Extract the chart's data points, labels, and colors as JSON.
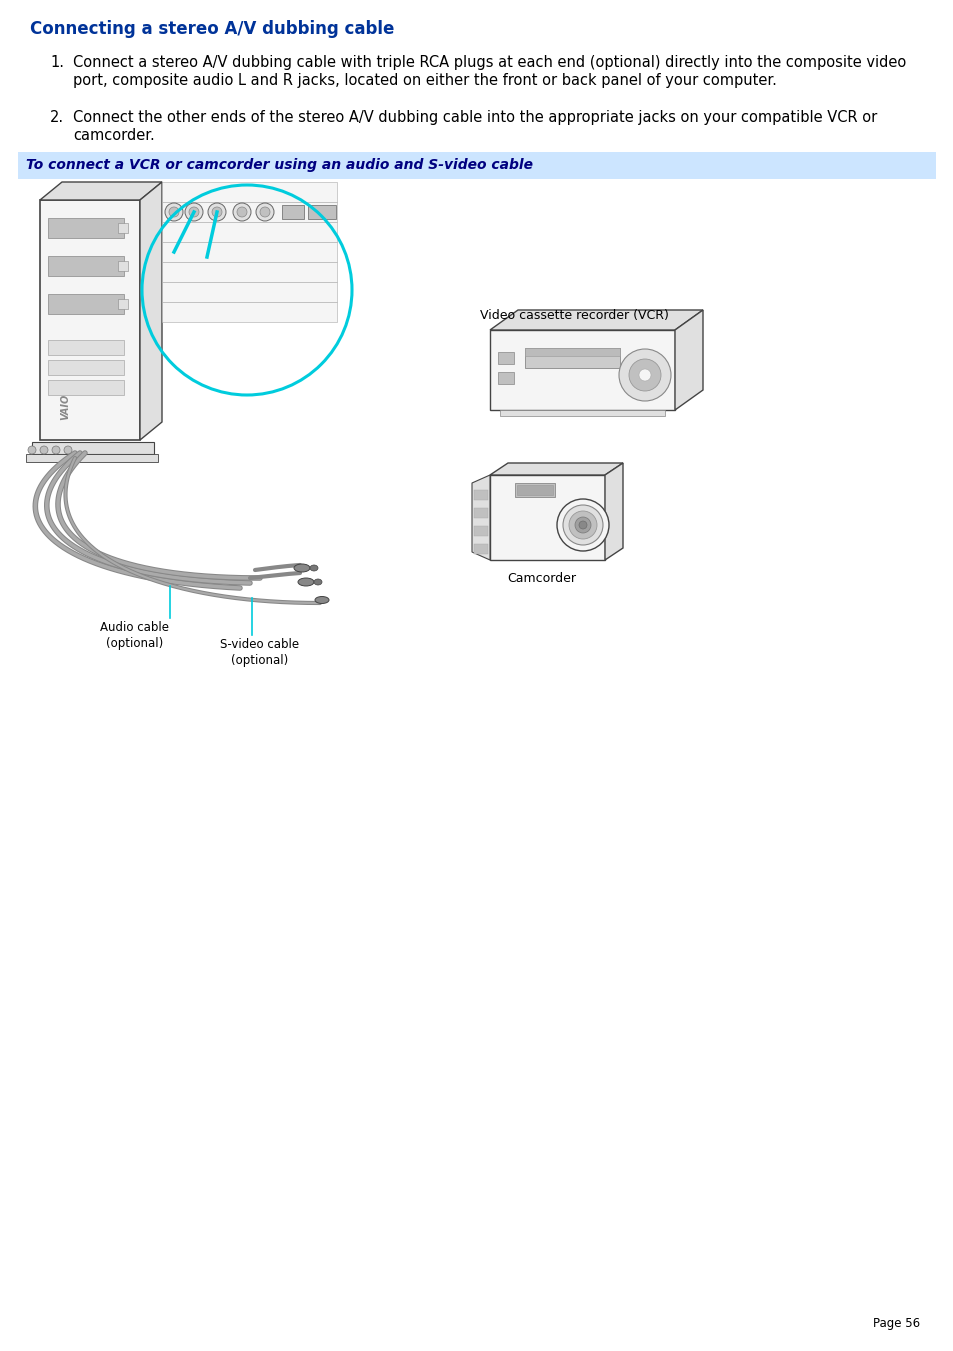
{
  "title": "Connecting a stereo A/V dubbing cable",
  "title_color": "#003399",
  "title_fontsize": 12,
  "body_fontsize": 10.5,
  "body_color": "#000000",
  "item1_line1": "Connect a stereo A/V dubbing cable with triple RCA plugs at each end (optional) directly into the composite video",
  "item1_line2": "port, composite audio L and R jacks, located on either the front or back panel of your computer.",
  "item2_line1": "Connect the other ends of the stereo A/V dubbing cable into the appropriate jacks on your compatible VCR or",
  "item2_line2": "camcorder.",
  "banner_text": "To connect a VCR or camcorder using an audio and S-video cable",
  "banner_bg": "#cce5ff",
  "banner_text_color": "#000080",
  "page_label": "Page 56",
  "background_color": "#ffffff",
  "label_vcr": "Video cassette recorder (VCR)",
  "label_camcorder": "Camcorder",
  "label_audio_line1": "Audio cable",
  "label_audio_line2": "(optional)",
  "label_svideo_line1": "S-video cable",
  "label_svideo_line2": "(optional)",
  "cyan_color": "#00ccdd",
  "outline_color": "#444444",
  "light_fill": "#f5f5f5",
  "mid_fill": "#e0e0e0",
  "dark_fill": "#c0c0c0",
  "cable_color": "#aaaaaa",
  "cable_dark": "#888888"
}
